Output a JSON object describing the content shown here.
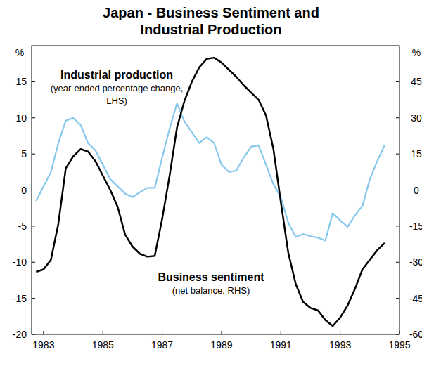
{
  "chart_data": {
    "type": "line",
    "title": "Japan - Business Sentiment and Industrial Production",
    "x": [
      1982.75,
      1983,
      1983.25,
      1983.5,
      1983.75,
      1984,
      1984.25,
      1984.5,
      1984.75,
      1985,
      1985.25,
      1985.5,
      1985.75,
      1986,
      1986.25,
      1986.5,
      1986.75,
      1987,
      1987.25,
      1987.5,
      1987.75,
      1988,
      1988.25,
      1988.5,
      1988.75,
      1989,
      1989.25,
      1989.5,
      1989.75,
      1990,
      1990.25,
      1990.5,
      1990.75,
      1991,
      1991.25,
      1991.5,
      1991.75,
      1992,
      1992.25,
      1992.5,
      1992.75,
      1993,
      1993.25,
      1993.5,
      1993.75,
      1994,
      1994.25,
      1994.5
    ],
    "xlim": [
      1982.6,
      1995
    ],
    "xticks": [
      1983,
      1985,
      1987,
      1989,
      1991,
      1993,
      1995
    ],
    "ylim": [
      -20,
      20
    ],
    "yticks": [
      -20,
      -15,
      -10,
      -5,
      0,
      5,
      10,
      15
    ],
    "y2lim": [
      -60,
      60
    ],
    "y2ticks": [
      -60,
      -45,
      -30,
      -15,
      0,
      15,
      30,
      45
    ],
    "ylabel": "%",
    "y2label": "%",
    "grid": false,
    "series": [
      {
        "name": "Industrial production",
        "color": "#85c8ec",
        "axis": "y",
        "values": [
          -1.5,
          0.5,
          2.5,
          6.5,
          9.6,
          10,
          9,
          6.5,
          5.5,
          3.5,
          1.5,
          0.5,
          -0.5,
          -1,
          -0.3,
          0.3,
          0.3,
          4.5,
          8.5,
          12,
          9.5,
          8,
          6.5,
          7.3,
          6.5,
          3.5,
          2.5,
          2.7,
          4.5,
          6,
          6.2,
          3.5,
          0.8,
          -1,
          -4.5,
          -6.5,
          -6.1,
          -6.4,
          -6.6,
          -7,
          -3.2,
          -4.2,
          -5.1,
          -3.5,
          -2.2,
          1.5,
          4,
          6.2
        ]
      },
      {
        "name": "Business sentiment",
        "color": "#000000",
        "axis": "y2",
        "values": [
          -34,
          -33,
          -29,
          -14,
          9,
          14,
          17,
          16,
          12,
          6,
          0,
          -7,
          -18.5,
          -23.5,
          -26.5,
          -27.7,
          -27.4,
          -12,
          6,
          26,
          37,
          45,
          51,
          54.5,
          55,
          53,
          50,
          47,
          43.5,
          40.5,
          37.5,
          31,
          17,
          -5,
          -26,
          -39,
          -46.5,
          -49,
          -50,
          -54,
          -56.5,
          -53,
          -48,
          -41,
          -33,
          -29,
          -25,
          -22
        ]
      }
    ],
    "annotations": [
      "(year-ended percentage change, LHS)",
      "(net balance, RHS)"
    ]
  }
}
